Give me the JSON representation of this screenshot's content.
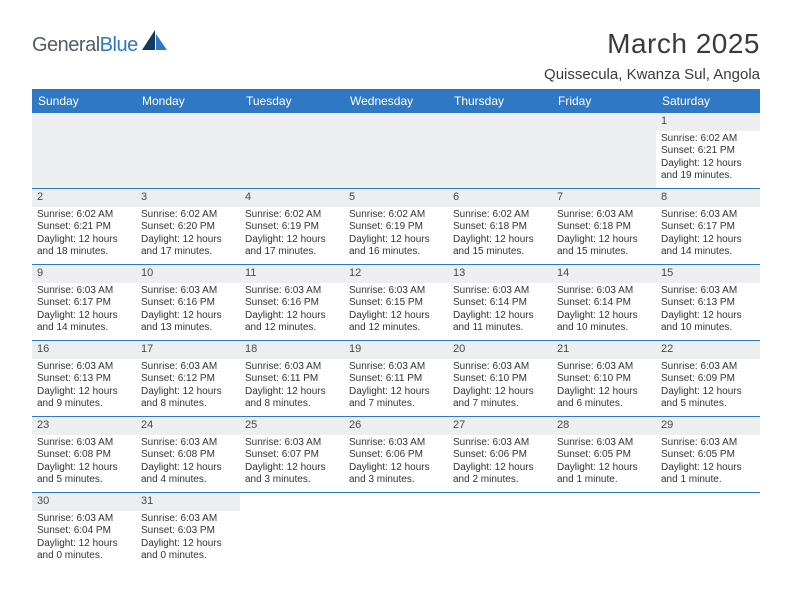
{
  "brand": {
    "part1": "General",
    "part2": "Blue"
  },
  "title": "March 2025",
  "location": "Quissecula, Kwanza Sul, Angola",
  "colors": {
    "header_bg": "#2f78c4",
    "header_text": "#ffffff",
    "daynum_bg": "#eceeef",
    "border": "#2f78c4",
    "text": "#333333",
    "logo_gray": "#555c63",
    "logo_blue": "#2f78c4"
  },
  "weekdays": [
    "Sunday",
    "Monday",
    "Tuesday",
    "Wednesday",
    "Thursday",
    "Friday",
    "Saturday"
  ],
  "leading_blanks": 6,
  "trailing_blanks": 5,
  "days": [
    {
      "n": 1,
      "sunrise": "6:02 AM",
      "sunset": "6:21 PM",
      "daylight": "12 hours and 19 minutes."
    },
    {
      "n": 2,
      "sunrise": "6:02 AM",
      "sunset": "6:21 PM",
      "daylight": "12 hours and 18 minutes."
    },
    {
      "n": 3,
      "sunrise": "6:02 AM",
      "sunset": "6:20 PM",
      "daylight": "12 hours and 17 minutes."
    },
    {
      "n": 4,
      "sunrise": "6:02 AM",
      "sunset": "6:19 PM",
      "daylight": "12 hours and 17 minutes."
    },
    {
      "n": 5,
      "sunrise": "6:02 AM",
      "sunset": "6:19 PM",
      "daylight": "12 hours and 16 minutes."
    },
    {
      "n": 6,
      "sunrise": "6:02 AM",
      "sunset": "6:18 PM",
      "daylight": "12 hours and 15 minutes."
    },
    {
      "n": 7,
      "sunrise": "6:03 AM",
      "sunset": "6:18 PM",
      "daylight": "12 hours and 15 minutes."
    },
    {
      "n": 8,
      "sunrise": "6:03 AM",
      "sunset": "6:17 PM",
      "daylight": "12 hours and 14 minutes."
    },
    {
      "n": 9,
      "sunrise": "6:03 AM",
      "sunset": "6:17 PM",
      "daylight": "12 hours and 14 minutes."
    },
    {
      "n": 10,
      "sunrise": "6:03 AM",
      "sunset": "6:16 PM",
      "daylight": "12 hours and 13 minutes."
    },
    {
      "n": 11,
      "sunrise": "6:03 AM",
      "sunset": "6:16 PM",
      "daylight": "12 hours and 12 minutes."
    },
    {
      "n": 12,
      "sunrise": "6:03 AM",
      "sunset": "6:15 PM",
      "daylight": "12 hours and 12 minutes."
    },
    {
      "n": 13,
      "sunrise": "6:03 AM",
      "sunset": "6:14 PM",
      "daylight": "12 hours and 11 minutes."
    },
    {
      "n": 14,
      "sunrise": "6:03 AM",
      "sunset": "6:14 PM",
      "daylight": "12 hours and 10 minutes."
    },
    {
      "n": 15,
      "sunrise": "6:03 AM",
      "sunset": "6:13 PM",
      "daylight": "12 hours and 10 minutes."
    },
    {
      "n": 16,
      "sunrise": "6:03 AM",
      "sunset": "6:13 PM",
      "daylight": "12 hours and 9 minutes."
    },
    {
      "n": 17,
      "sunrise": "6:03 AM",
      "sunset": "6:12 PM",
      "daylight": "12 hours and 8 minutes."
    },
    {
      "n": 18,
      "sunrise": "6:03 AM",
      "sunset": "6:11 PM",
      "daylight": "12 hours and 8 minutes."
    },
    {
      "n": 19,
      "sunrise": "6:03 AM",
      "sunset": "6:11 PM",
      "daylight": "12 hours and 7 minutes."
    },
    {
      "n": 20,
      "sunrise": "6:03 AM",
      "sunset": "6:10 PM",
      "daylight": "12 hours and 7 minutes."
    },
    {
      "n": 21,
      "sunrise": "6:03 AM",
      "sunset": "6:10 PM",
      "daylight": "12 hours and 6 minutes."
    },
    {
      "n": 22,
      "sunrise": "6:03 AM",
      "sunset": "6:09 PM",
      "daylight": "12 hours and 5 minutes."
    },
    {
      "n": 23,
      "sunrise": "6:03 AM",
      "sunset": "6:08 PM",
      "daylight": "12 hours and 5 minutes."
    },
    {
      "n": 24,
      "sunrise": "6:03 AM",
      "sunset": "6:08 PM",
      "daylight": "12 hours and 4 minutes."
    },
    {
      "n": 25,
      "sunrise": "6:03 AM",
      "sunset": "6:07 PM",
      "daylight": "12 hours and 3 minutes."
    },
    {
      "n": 26,
      "sunrise": "6:03 AM",
      "sunset": "6:06 PM",
      "daylight": "12 hours and 3 minutes."
    },
    {
      "n": 27,
      "sunrise": "6:03 AM",
      "sunset": "6:06 PM",
      "daylight": "12 hours and 2 minutes."
    },
    {
      "n": 28,
      "sunrise": "6:03 AM",
      "sunset": "6:05 PM",
      "daylight": "12 hours and 1 minute."
    },
    {
      "n": 29,
      "sunrise": "6:03 AM",
      "sunset": "6:05 PM",
      "daylight": "12 hours and 1 minute."
    },
    {
      "n": 30,
      "sunrise": "6:03 AM",
      "sunset": "6:04 PM",
      "daylight": "12 hours and 0 minutes."
    },
    {
      "n": 31,
      "sunrise": "6:03 AM",
      "sunset": "6:03 PM",
      "daylight": "12 hours and 0 minutes."
    }
  ],
  "labels": {
    "sunrise": "Sunrise:",
    "sunset": "Sunset:",
    "daylight": "Daylight:"
  }
}
